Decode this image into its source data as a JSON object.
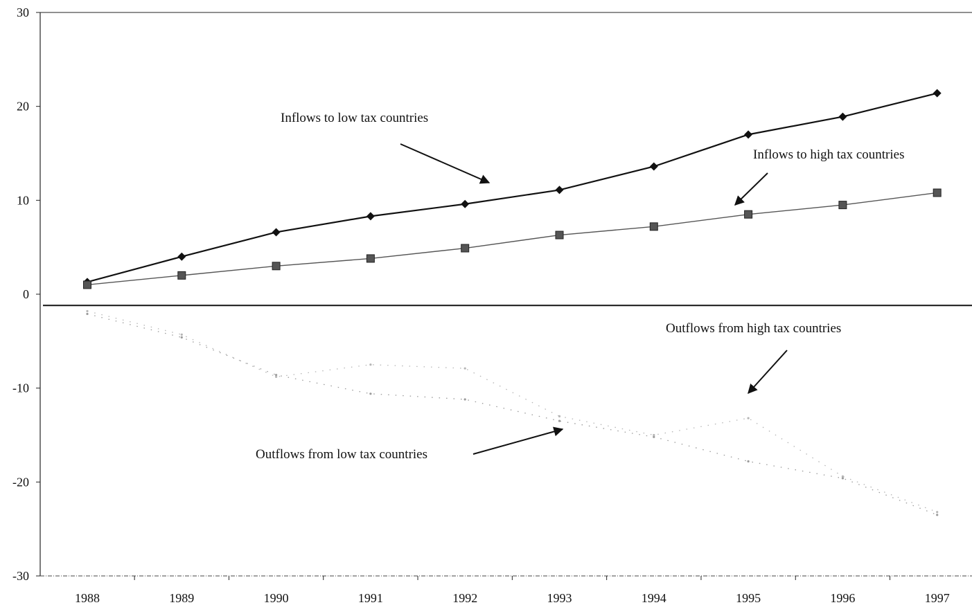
{
  "chart_data": {
    "type": "line",
    "title": "",
    "xlabel": "",
    "ylabel": "",
    "categories": [
      "1988",
      "1989",
      "1990",
      "1991",
      "1992",
      "1993",
      "1994",
      "1995",
      "1996",
      "1997"
    ],
    "ylim": [
      -30,
      30
    ],
    "yticks": [
      30,
      20,
      10,
      0,
      -10,
      -20,
      -30
    ],
    "grid": false,
    "series": [
      {
        "name": "Inflows to low tax countries",
        "values": [
          1.3,
          4.0,
          6.6,
          8.3,
          9.6,
          11.1,
          13.6,
          17.0,
          18.9,
          21.4
        ],
        "color": "#111111",
        "marker": "diamond"
      },
      {
        "name": "Inflows to high tax countries",
        "values": [
          1.0,
          2.0,
          3.0,
          3.8,
          4.9,
          6.3,
          7.2,
          8.5,
          9.5,
          10.8
        ],
        "color": "#555555",
        "marker": "square"
      },
      {
        "name": "Outflows from low tax countries",
        "values": [
          -2.1,
          -4.6,
          -8.6,
          -10.6,
          -11.2,
          -13.5,
          -15.2,
          -17.8,
          -19.6,
          -23.5
        ],
        "color": "#9a9a9a",
        "marker": "dot"
      },
      {
        "name": "Outflows from high tax countries",
        "values": [
          -1.8,
          -4.3,
          -8.8,
          -7.5,
          -7.9,
          -13.0,
          -15.0,
          -13.2,
          -19.4,
          -23.2
        ],
        "color": "#b5b5b5",
        "marker": "dot"
      }
    ],
    "zero_line_value": -1.2,
    "annotations": [
      {
        "text": "Inflows to low tax countries",
        "target": [
          4.3,
          11.2
        ]
      },
      {
        "text": "Inflows to high tax countries",
        "target": [
          7.0,
          9.1
        ]
      },
      {
        "text": "Outflows from high tax countries",
        "target": [
          7.0,
          -11.0
        ]
      },
      {
        "text": "Outflows from low tax countries",
        "target": [
          5.1,
          -14.4
        ]
      }
    ]
  }
}
